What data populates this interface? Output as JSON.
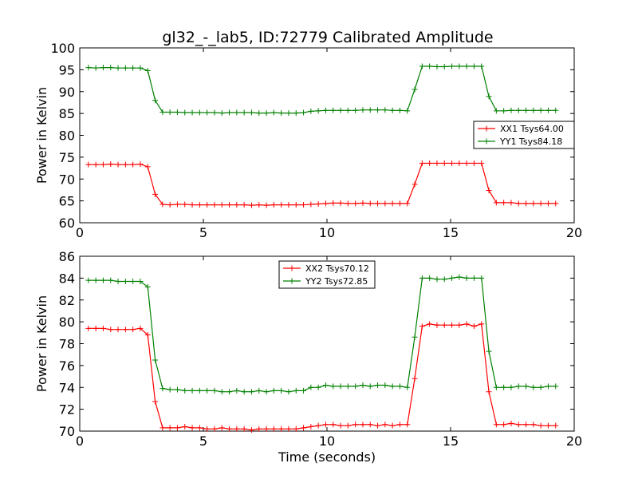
{
  "title": "gl32_-_lab5, ID:72779 Calibrated Amplitude",
  "colors": {
    "red": "#ff0000",
    "green": "#008000",
    "frame": "#000000"
  },
  "chart_data": [
    {
      "type": "line",
      "ylabel": "Power in Kelvin",
      "xlabel": "",
      "xlim": [
        0,
        20
      ],
      "ylim": [
        60,
        100
      ],
      "xticks": [
        "0",
        "5",
        "10",
        "15",
        "20"
      ],
      "yticks": [
        "60",
        "65",
        "70",
        "75",
        "80",
        "85",
        "90",
        "95",
        "100"
      ],
      "xtick_values": [
        0,
        5,
        10,
        15,
        20
      ],
      "ytick_values": [
        60,
        65,
        70,
        75,
        80,
        85,
        90,
        95,
        100
      ],
      "legend_position": "center-right",
      "x": [
        0.35,
        0.65,
        0.95,
        1.25,
        1.55,
        1.85,
        2.15,
        2.45,
        2.75,
        3.05,
        3.35,
        3.65,
        3.95,
        4.25,
        4.55,
        4.85,
        5.15,
        5.45,
        5.75,
        6.05,
        6.35,
        6.65,
        6.95,
        7.25,
        7.55,
        7.85,
        8.15,
        8.45,
        8.75,
        9.05,
        9.35,
        9.65,
        9.95,
        10.25,
        10.55,
        10.85,
        11.15,
        11.45,
        11.75,
        12.05,
        12.35,
        12.65,
        12.95,
        13.25,
        13.55,
        13.85,
        14.15,
        14.45,
        14.75,
        15.05,
        15.35,
        15.65,
        15.95,
        16.25,
        16.55,
        16.85,
        17.15,
        17.45,
        17.75,
        18.05,
        18.35,
        18.65,
        18.95,
        19.25
      ],
      "series": [
        {
          "name": "XX1 Tsys64.00",
          "color": "#ff0000",
          "values": [
            73.3,
            73.3,
            73.3,
            73.4,
            73.3,
            73.3,
            73.3,
            73.4,
            72.8,
            66.5,
            64.2,
            64.1,
            64.2,
            64.2,
            64.1,
            64.1,
            64.1,
            64.1,
            64.1,
            64.1,
            64.1,
            64.1,
            64.0,
            64.1,
            64.0,
            64.1,
            64.1,
            64.1,
            64.1,
            64.1,
            64.2,
            64.3,
            64.4,
            64.5,
            64.5,
            64.4,
            64.4,
            64.5,
            64.4,
            64.4,
            64.4,
            64.4,
            64.4,
            64.4,
            68.8,
            73.6,
            73.6,
            73.6,
            73.6,
            73.6,
            73.6,
            73.6,
            73.6,
            73.6,
            67.4,
            64.6,
            64.6,
            64.6,
            64.4,
            64.4,
            64.4,
            64.4,
            64.4,
            64.4
          ]
        },
        {
          "name": "YY1 Tsys84.18",
          "color": "#008000",
          "values": [
            95.5,
            95.4,
            95.5,
            95.5,
            95.4,
            95.4,
            95.4,
            95.4,
            94.8,
            88.0,
            85.3,
            85.3,
            85.3,
            85.2,
            85.2,
            85.2,
            85.2,
            85.2,
            85.1,
            85.2,
            85.2,
            85.2,
            85.2,
            85.1,
            85.1,
            85.2,
            85.1,
            85.1,
            85.1,
            85.2,
            85.5,
            85.6,
            85.7,
            85.7,
            85.7,
            85.7,
            85.7,
            85.8,
            85.8,
            85.8,
            85.8,
            85.7,
            85.7,
            85.6,
            90.5,
            95.8,
            95.8,
            95.7,
            95.7,
            95.8,
            95.8,
            95.8,
            95.8,
            95.8,
            88.9,
            85.6,
            85.6,
            85.7,
            85.7,
            85.7,
            85.7,
            85.7,
            85.7,
            85.7
          ]
        }
      ]
    },
    {
      "type": "line",
      "ylabel": "Power in Kelvin",
      "xlabel": "Time (seconds)",
      "xlim": [
        0,
        20
      ],
      "ylim": [
        70,
        86
      ],
      "xticks": [
        "0",
        "5",
        "10",
        "15",
        "20"
      ],
      "yticks": [
        "70",
        "72",
        "74",
        "76",
        "78",
        "80",
        "82",
        "84",
        "86"
      ],
      "xtick_values": [
        0,
        5,
        10,
        15,
        20
      ],
      "ytick_values": [
        70,
        72,
        74,
        76,
        78,
        80,
        82,
        84,
        86
      ],
      "legend_position": "upper-center",
      "x": [
        0.35,
        0.65,
        0.95,
        1.25,
        1.55,
        1.85,
        2.15,
        2.45,
        2.75,
        3.05,
        3.35,
        3.65,
        3.95,
        4.25,
        4.55,
        4.85,
        5.15,
        5.45,
        5.75,
        6.05,
        6.35,
        6.65,
        6.95,
        7.25,
        7.55,
        7.85,
        8.15,
        8.45,
        8.75,
        9.05,
        9.35,
        9.65,
        9.95,
        10.25,
        10.55,
        10.85,
        11.15,
        11.45,
        11.75,
        12.05,
        12.35,
        12.65,
        12.95,
        13.25,
        13.55,
        13.85,
        14.15,
        14.45,
        14.75,
        15.05,
        15.35,
        15.65,
        15.95,
        16.25,
        16.55,
        16.85,
        17.15,
        17.45,
        17.75,
        18.05,
        18.35,
        18.65,
        18.95,
        19.25
      ],
      "series": [
        {
          "name": "XX2 Tsys70.12",
          "color": "#ff0000",
          "values": [
            79.4,
            79.4,
            79.4,
            79.3,
            79.3,
            79.3,
            79.3,
            79.4,
            78.8,
            72.7,
            70.3,
            70.3,
            70.3,
            70.4,
            70.3,
            70.3,
            70.2,
            70.2,
            70.3,
            70.2,
            70.2,
            70.2,
            70.1,
            70.2,
            70.2,
            70.2,
            70.2,
            70.2,
            70.2,
            70.3,
            70.4,
            70.5,
            70.6,
            70.6,
            70.5,
            70.5,
            70.6,
            70.6,
            70.6,
            70.5,
            70.6,
            70.5,
            70.6,
            70.6,
            74.8,
            79.6,
            79.8,
            79.7,
            79.7,
            79.7,
            79.7,
            79.8,
            79.6,
            79.8,
            73.6,
            70.6,
            70.6,
            70.7,
            70.6,
            70.6,
            70.6,
            70.5,
            70.5,
            70.5
          ]
        },
        {
          "name": "YY2 Tsys72.85",
          "color": "#008000",
          "values": [
            83.8,
            83.8,
            83.8,
            83.8,
            83.7,
            83.7,
            83.7,
            83.7,
            83.2,
            76.5,
            73.9,
            73.8,
            73.8,
            73.7,
            73.7,
            73.7,
            73.7,
            73.7,
            73.6,
            73.6,
            73.7,
            73.6,
            73.6,
            73.7,
            73.6,
            73.7,
            73.7,
            73.6,
            73.7,
            73.7,
            74.0,
            74.0,
            74.2,
            74.1,
            74.1,
            74.1,
            74.1,
            74.2,
            74.1,
            74.2,
            74.2,
            74.1,
            74.1,
            74.0,
            78.6,
            84.0,
            84.0,
            83.9,
            83.9,
            84.0,
            84.1,
            84.0,
            84.0,
            84.0,
            77.3,
            74.0,
            74.0,
            74.0,
            74.1,
            74.1,
            74.0,
            74.0,
            74.1,
            74.1
          ]
        }
      ]
    }
  ]
}
